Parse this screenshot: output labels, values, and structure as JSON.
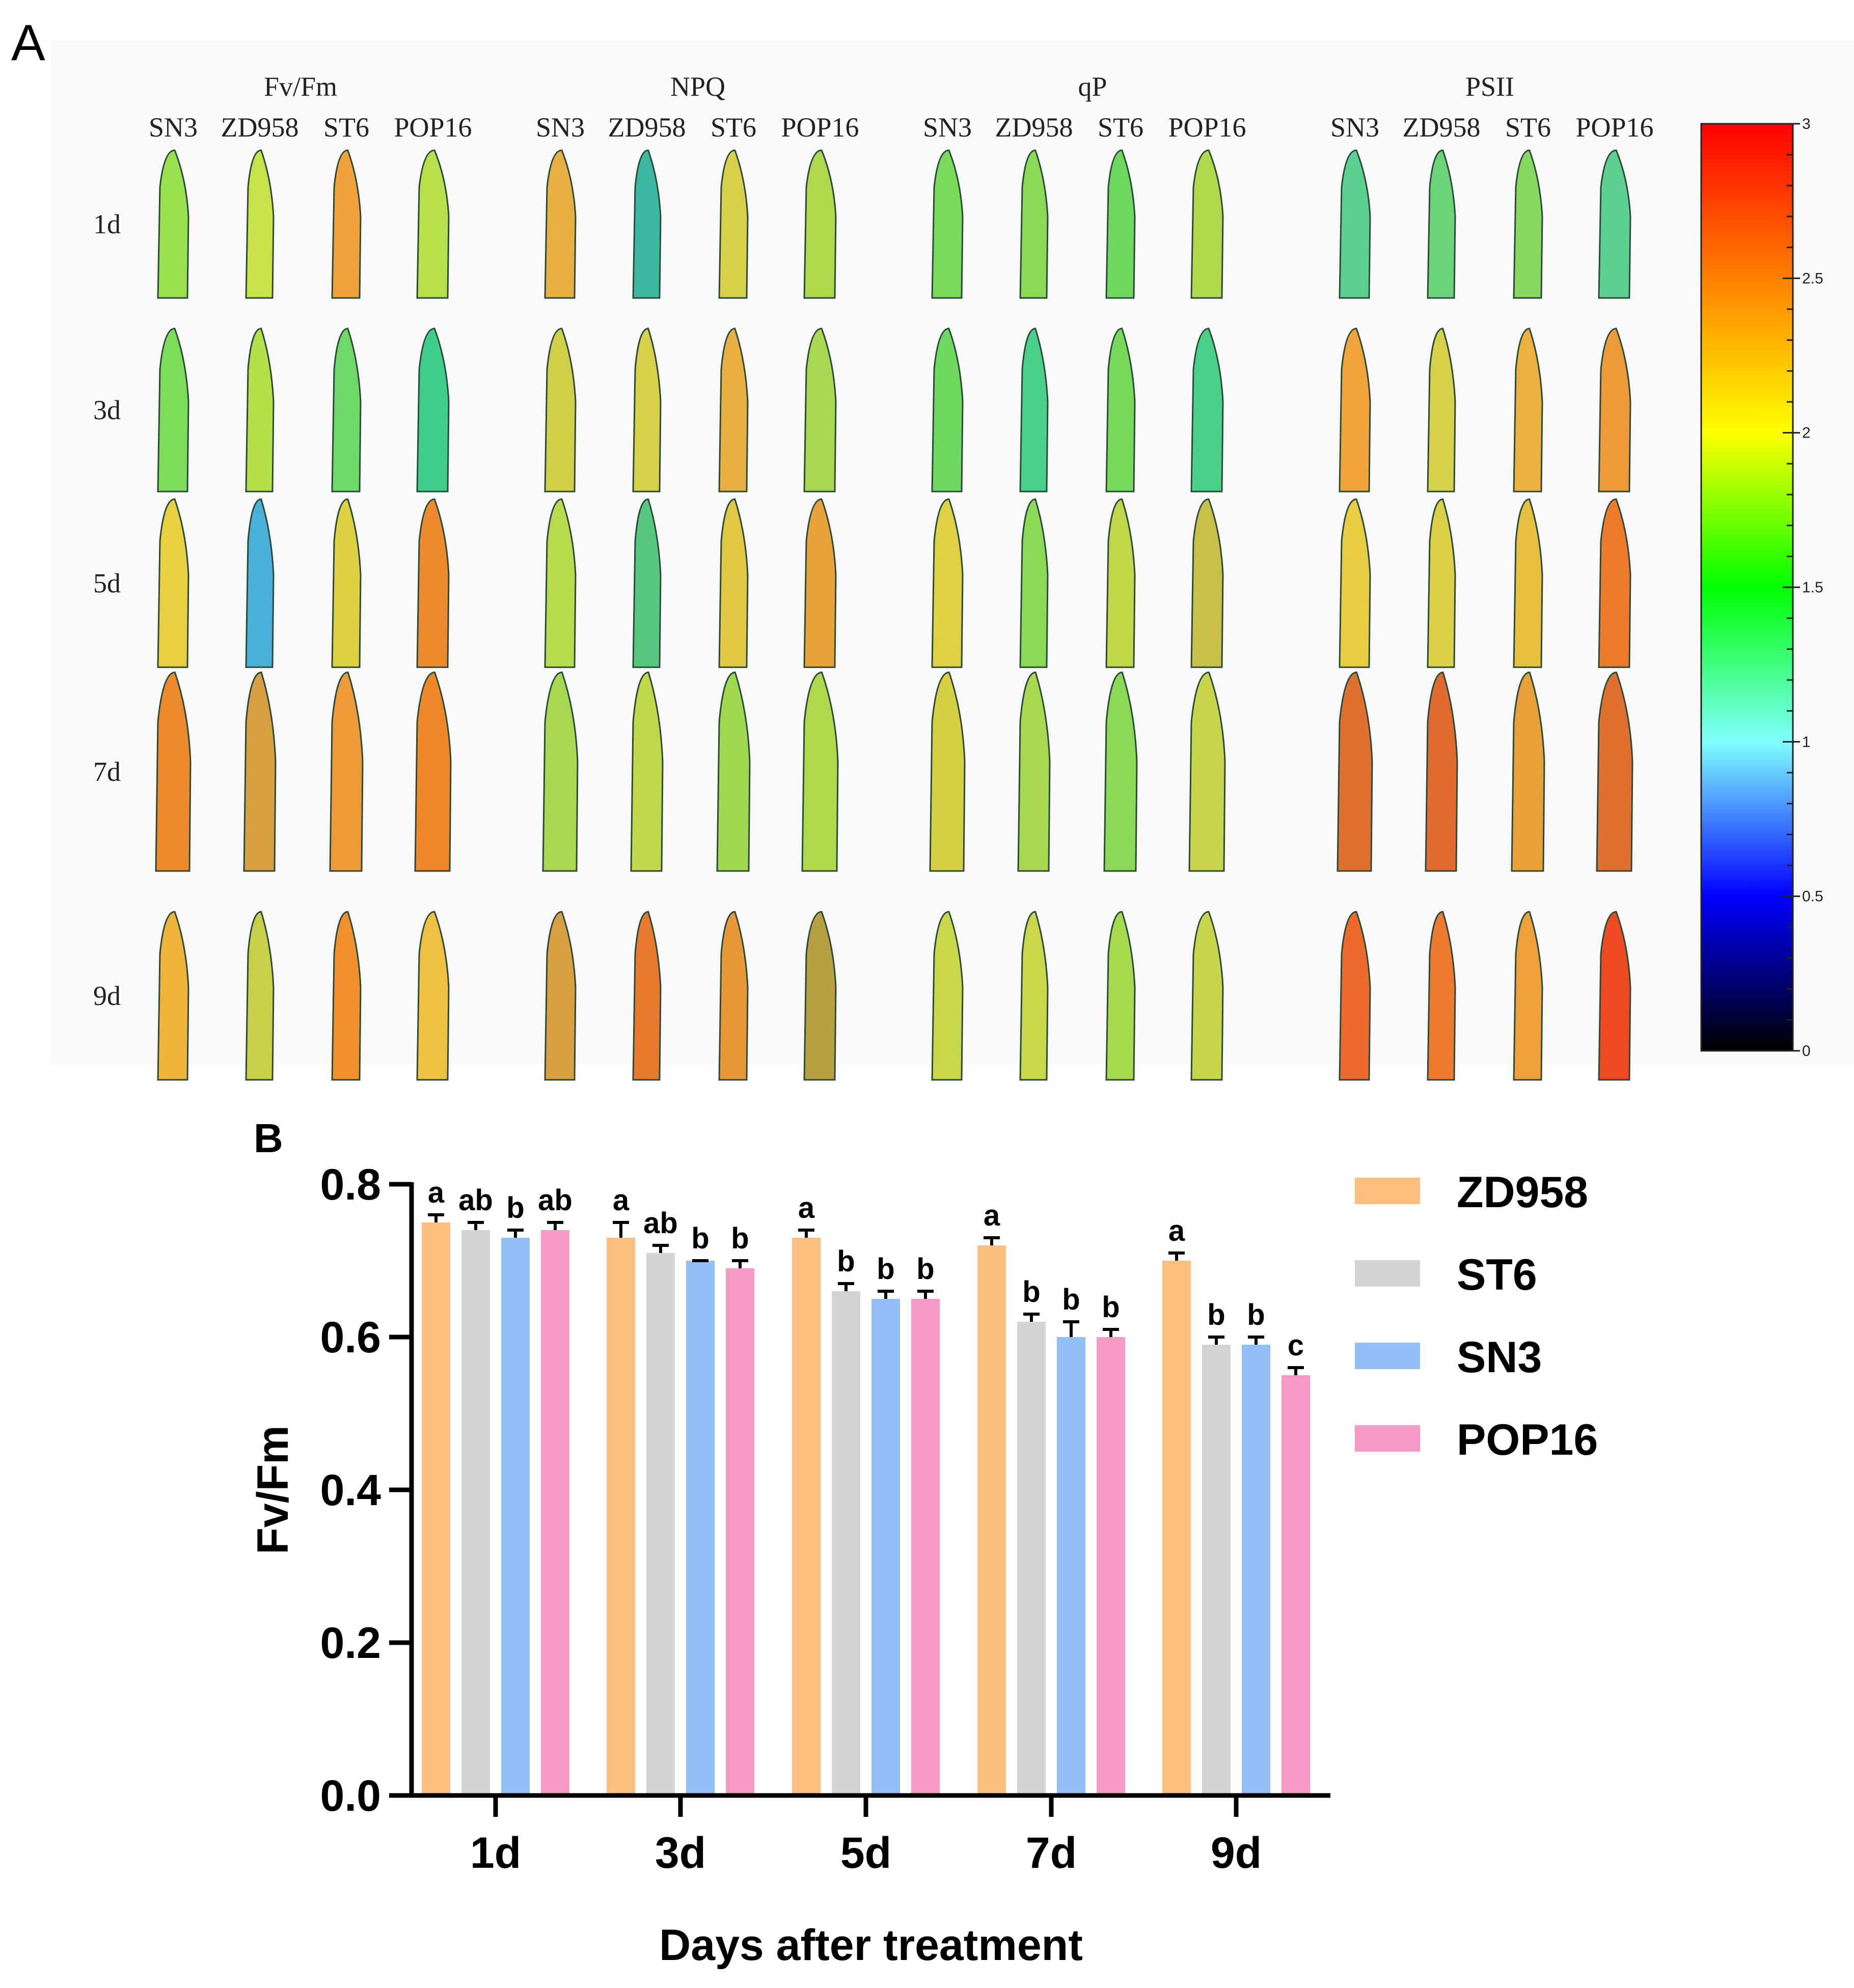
{
  "panel_a": {
    "letter": "A",
    "groups": [
      {
        "title": "Fv/Fm",
        "cultivars": [
          "SN3",
          "ZD958",
          "ST6",
          "POP16"
        ]
      },
      {
        "title": "NPQ",
        "cultivars": [
          "SN3",
          "ZD958",
          "ST6",
          "POP16"
        ]
      },
      {
        "title": "qP",
        "cultivars": [
          "SN3",
          "ZD958",
          "ST6",
          "POP16"
        ]
      },
      {
        "title": "PSII",
        "cultivars": [
          "SN3",
          "ZD958",
          "ST6",
          "POP16"
        ]
      }
    ],
    "rows": [
      "1d",
      "3d",
      "5d",
      "7d",
      "9d"
    ],
    "colorbar": {
      "min": 0,
      "max": 3,
      "tick_labels": [
        "3",
        "2.5",
        "2",
        "1.5",
        "1",
        "0.5",
        "0"
      ],
      "stops": [
        {
          "value": 3,
          "color": "#ff0000"
        },
        {
          "value": 2.5,
          "color": "#ff8000"
        },
        {
          "value": 2,
          "color": "#ffff00"
        },
        {
          "value": 1.5,
          "color": "#00ff00"
        },
        {
          "value": 1,
          "color": "#80ffff"
        },
        {
          "value": 0.5,
          "color": "#0000ff"
        },
        {
          "value": 0,
          "color": "#000000"
        }
      ]
    },
    "leaf_colors": {
      "Fv/Fm": [
        [
          "#9be04e",
          "#c8e24a",
          "#f2a23a",
          "#b8e04a"
        ],
        [
          "#7ddc5a",
          "#b6e04a",
          "#6fd86a",
          "#3fcf8a"
        ],
        [
          "#e8d040",
          "#4ab0d8",
          "#dfcf42",
          "#ee8a2e"
        ],
        [
          "#ef8a2c",
          "#d8a040",
          "#ee9a38",
          "#f0882a"
        ],
        [
          "#f0b43a",
          "#c8d04a",
          "#f2902e",
          "#f0c040"
        ]
      ],
      "NPQ": [
        [
          "#e8b040",
          "#3cb8a0",
          "#d8d048",
          "#b0d84c"
        ],
        [
          "#d0d048",
          "#d8d048",
          "#e8b040",
          "#a8d850"
        ],
        [
          "#b8dc4c",
          "#58c880",
          "#e0c844",
          "#e8a23a"
        ],
        [
          "#a8d850",
          "#c0d84a",
          "#a0d850",
          "#b0d84c"
        ],
        [
          "#d8a040",
          "#e87a30",
          "#e89838",
          "#b8a040"
        ]
      ],
      "qP": [
        [
          "#7ada5a",
          "#8ada56",
          "#6ed85e",
          "#b0da4c"
        ],
        [
          "#6ed860",
          "#4ad088",
          "#78da5a",
          "#4ad088"
        ],
        [
          "#e0d044",
          "#8ada56",
          "#c0d848",
          "#c8c048"
        ],
        [
          "#d8d044",
          "#a8d850",
          "#8ada56",
          "#c8d44a"
        ],
        [
          "#c8d84a",
          "#c8d84a",
          "#a8da4e",
          "#c8d44a"
        ]
      ],
      "PSII": [
        [
          "#5cd090",
          "#6cd478",
          "#88d860",
          "#5cd090"
        ],
        [
          "#f0a43a",
          "#d8d048",
          "#ecb03e",
          "#ee9a38"
        ],
        [
          "#e8cc42",
          "#dcd046",
          "#e8c040",
          "#ee7a2c"
        ],
        [
          "#e07030",
          "#e06a30",
          "#e8a03a",
          "#e07030"
        ],
        [
          "#ee6a2c",
          "#ee7a2e",
          "#f0a03a",
          "#ee4a22"
        ]
      ]
    }
  },
  "panel_b": {
    "letter": "B",
    "legend": [
      {
        "name": "ZD958",
        "color": "#fdbf7f"
      },
      {
        "name": "ST6",
        "color": "#d4d4d4"
      },
      {
        "name": "SN3",
        "color": "#92bff5"
      },
      {
        "name": "POP16",
        "color": "#f89ac6"
      }
    ]
  },
  "chart_data": {
    "type": "bar",
    "title": "",
    "xlabel": "Days after treatment",
    "ylabel": "Fv/Fm",
    "ylim": [
      0,
      0.8
    ],
    "yticks": [
      "0.0",
      "0.2",
      "0.4",
      "0.6",
      "0.8"
    ],
    "categories": [
      "1d",
      "3d",
      "5d",
      "7d",
      "9d"
    ],
    "series": [
      {
        "name": "ZD958",
        "color": "#fdbf7f",
        "values": [
          0.75,
          0.73,
          0.73,
          0.72,
          0.7
        ],
        "errors": [
          0.01,
          0.02,
          0.01,
          0.01,
          0.01
        ],
        "letters": [
          "a",
          "a",
          "a",
          "a",
          "a"
        ]
      },
      {
        "name": "ST6",
        "color": "#d4d4d4",
        "values": [
          0.74,
          0.71,
          0.66,
          0.62,
          0.59
        ],
        "errors": [
          0.01,
          0.01,
          0.01,
          0.01,
          0.01
        ],
        "letters": [
          "ab",
          "ab",
          "b",
          "b",
          "b"
        ]
      },
      {
        "name": "SN3",
        "color": "#92bff5",
        "values": [
          0.73,
          0.7,
          0.65,
          0.6,
          0.59
        ],
        "errors": [
          0.01,
          0.0,
          0.01,
          0.02,
          0.01
        ],
        "letters": [
          "b",
          "b",
          "b",
          "b",
          "b"
        ]
      },
      {
        "name": "POP16",
        "color": "#f89ac6",
        "values": [
          0.74,
          0.69,
          0.65,
          0.6,
          0.55
        ],
        "errors": [
          0.01,
          0.01,
          0.01,
          0.01,
          0.01
        ],
        "letters": [
          "ab",
          "b",
          "b",
          "b",
          "c"
        ]
      }
    ]
  }
}
